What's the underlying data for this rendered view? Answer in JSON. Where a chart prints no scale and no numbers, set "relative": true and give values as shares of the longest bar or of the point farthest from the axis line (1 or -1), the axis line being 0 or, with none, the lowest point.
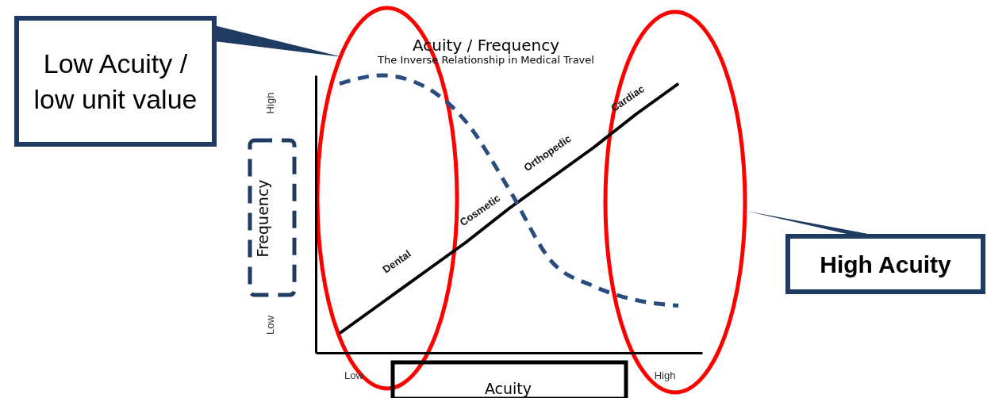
{
  "chart_data": {
    "type": "line",
    "title": "Acuity / Frequency",
    "subtitle": "The Inverse Relationship in Medical Travel",
    "xlabel": "Acuity",
    "ylabel": "Frequency",
    "relative": true,
    "categories": [
      null,
      null,
      null,
      null,
      null,
      null,
      null,
      null,
      null
    ],
    "series": [
      {
        "color": "#000000",
        "line_style": "solid",
        "values": [
          0.07,
          0.18,
          0.29,
          0.4,
          0.52,
          0.63,
          0.74,
          0.86,
          0.97
        ]
      },
      {
        "color": "#2a4d7f",
        "line_style": "dashed",
        "values": [
          0.97,
          1.0,
          0.96,
          0.83,
          0.59,
          0.33,
          0.24,
          0.19,
          0.17
        ]
      }
    ],
    "annotations": [
      "Dental",
      "Cosmetic",
      "Orthopedic",
      "Cardiac",
      "Low",
      "High",
      "Low",
      "High",
      "Low Acuity / low unit value",
      "High Acuity"
    ]
  }
}
